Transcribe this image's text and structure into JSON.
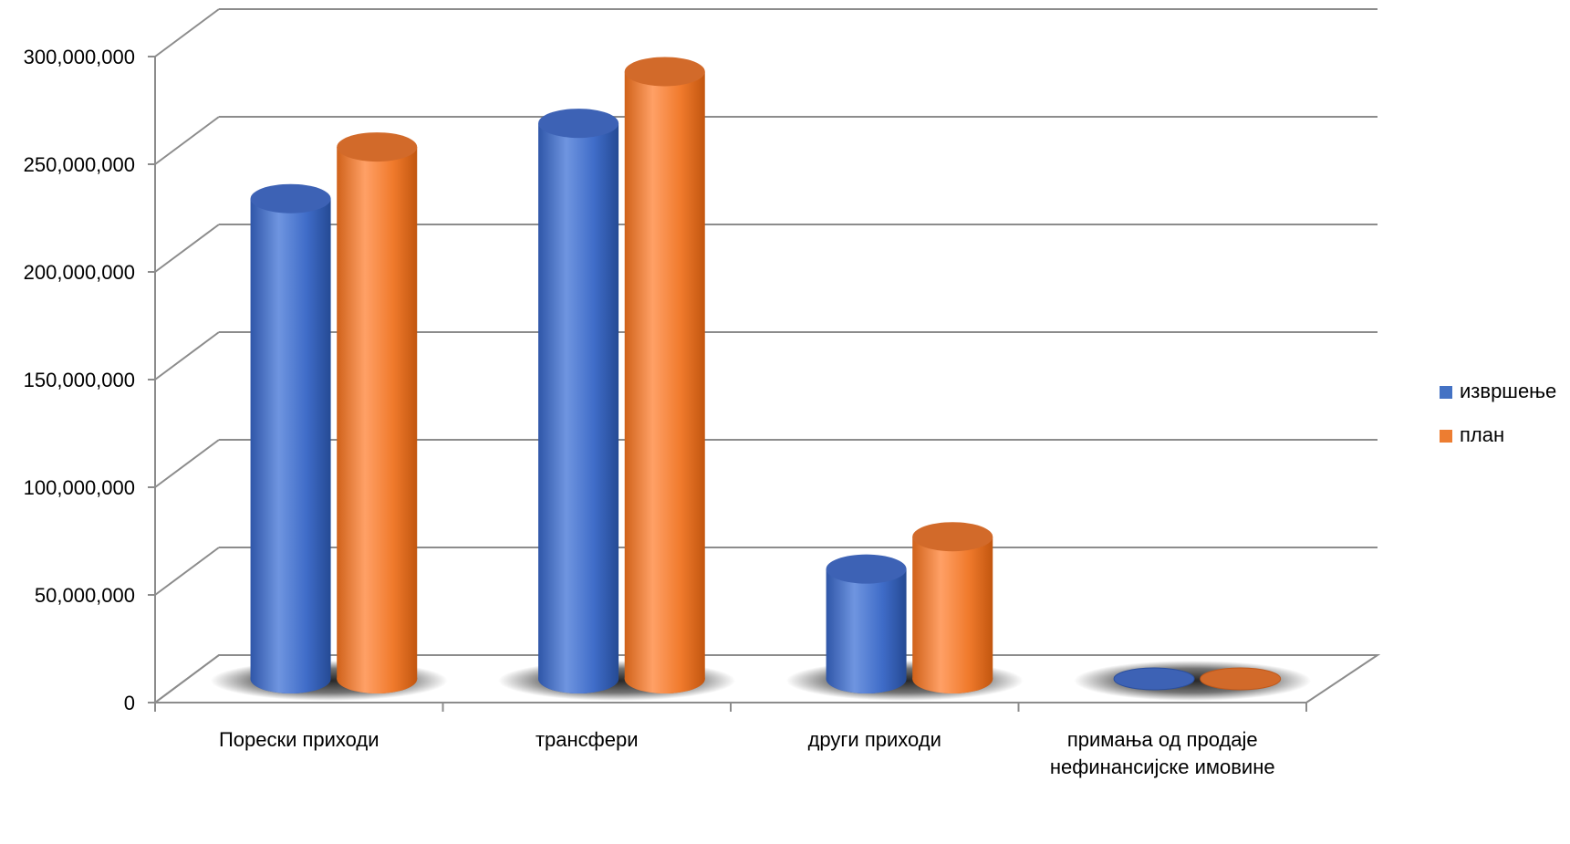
{
  "chart_data": {
    "type": "bar",
    "title": "",
    "xlabel": "",
    "ylabel": "",
    "ylim": [
      0,
      300000000
    ],
    "grid": true,
    "legend_position": "right",
    "y_ticks": [
      "0",
      "50,000,000",
      "100,000,000",
      "150,000,000",
      "200,000,000",
      "250,000,000",
      "300,000,000"
    ],
    "categories": [
      [
        "Порески приходи"
      ],
      [
        "трансфери"
      ],
      [
        "други приходи"
      ],
      [
        "примања од продаје",
        "нефинансијске имовине"
      ]
    ],
    "series": [
      {
        "name": "извршење",
        "color": "#4472C4",
        "values": [
          223000000,
          258000000,
          51000000,
          600000
        ]
      },
      {
        "name": "план",
        "color": "#ED7D31",
        "values": [
          247000000,
          282000000,
          66000000,
          600000
        ]
      }
    ]
  }
}
